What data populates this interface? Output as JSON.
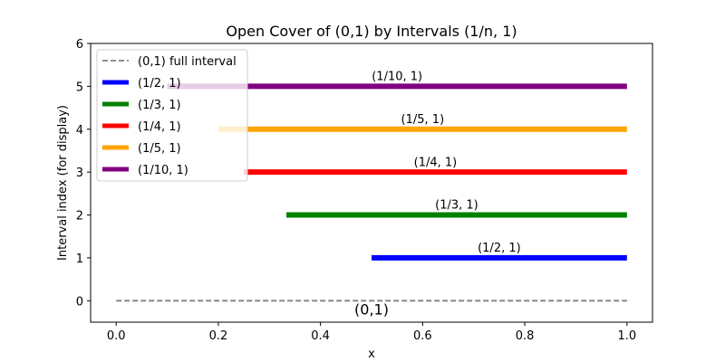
{
  "chart_data": {
    "type": "line",
    "title": "Open Cover of (0,1) by Intervals (1/n, 1)",
    "xlabel": "x",
    "ylabel": "Interval index (for display)",
    "xlim": [
      -0.05,
      1.05
    ],
    "ylim": [
      -0.5,
      6
    ],
    "xticks": [
      0.0,
      0.2,
      0.4,
      0.6,
      0.8,
      1.0
    ],
    "xtick_labels": [
      "0.0",
      "0.2",
      "0.4",
      "0.6",
      "0.8",
      "1.0"
    ],
    "yticks": [
      0,
      1,
      2,
      3,
      4,
      5,
      6
    ],
    "ytick_labels": [
      "0",
      "1",
      "2",
      "3",
      "4",
      "5",
      "6"
    ],
    "grid": false,
    "legend_position": "top-left",
    "full_interval": {
      "name": "(0,1) full interval",
      "x": [
        0,
        1
      ],
      "y": 0,
      "color": "#808080",
      "style": "dashed",
      "label": "(0,1)"
    },
    "series": [
      {
        "name": "(1/2, 1)",
        "x": [
          0.5,
          1
        ],
        "y": 1,
        "color": "#0000ff",
        "label": "(1/2, 1)"
      },
      {
        "name": "(1/3, 1)",
        "x": [
          0.3333,
          1
        ],
        "y": 2,
        "color": "#008000",
        "label": "(1/3, 1)"
      },
      {
        "name": "(1/4, 1)",
        "x": [
          0.25,
          1
        ],
        "y": 3,
        "color": "#ff0000",
        "label": "(1/4, 1)"
      },
      {
        "name": "(1/5, 1)",
        "x": [
          0.2,
          1
        ],
        "y": 4,
        "color": "#ffa500",
        "label": "(1/5, 1)"
      },
      {
        "name": "(1/10, 1)",
        "x": [
          0.1,
          1
        ],
        "y": 5,
        "color": "#800080",
        "label": "(1/10, 1)"
      }
    ]
  }
}
